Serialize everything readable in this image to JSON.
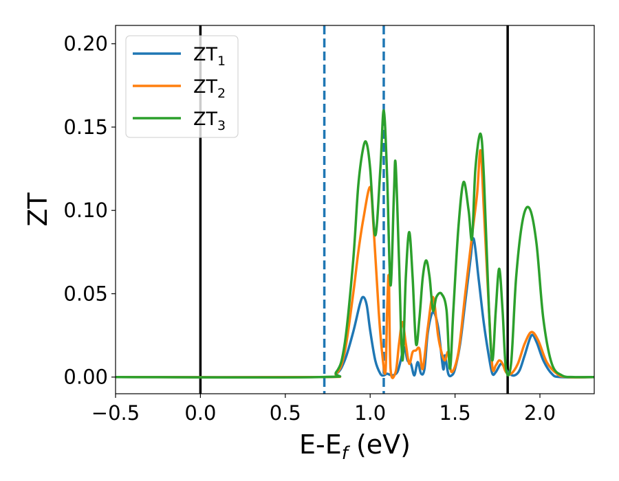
{
  "chart_data": {
    "type": "line",
    "xlabel": "E-E",
    "xlabel_sub": "f",
    "xlabel_unit": " (eV)",
    "ylabel": "ZT",
    "xlim": [
      -0.5,
      2.32
    ],
    "ylim": [
      -0.01,
      0.211
    ],
    "x_ticks": [
      -0.5,
      0.0,
      0.5,
      1.0,
      1.5,
      2.0
    ],
    "x_tick_labels": [
      "−0.5",
      "0.0",
      "0.5",
      "1.0",
      "1.5",
      "2.0"
    ],
    "y_ticks": [
      0.0,
      0.05,
      0.1,
      0.15,
      0.2
    ],
    "y_tick_labels": [
      "0.00",
      "0.05",
      "0.10",
      "0.15",
      "0.20"
    ],
    "grid": false,
    "legend_position": "top-left",
    "vlines": [
      {
        "x": 0.0,
        "style": "solid",
        "color": "#000000"
      },
      {
        "x": 1.81,
        "style": "solid",
        "color": "#000000"
      },
      {
        "x": 0.73,
        "style": "dashed",
        "color": "#1f77b4"
      },
      {
        "x": 1.08,
        "style": "dashed",
        "color": "#1f77b4"
      }
    ],
    "series": [
      {
        "name": "ZT",
        "sub": "1",
        "color": "#1f77b4",
        "x": [
          -0.5,
          0.7,
          0.8,
          0.85,
          0.9,
          0.94,
          0.96,
          0.98,
          1.0,
          1.03,
          1.06,
          1.08,
          1.1,
          1.13,
          1.16,
          1.18,
          1.2,
          1.22,
          1.24,
          1.26,
          1.28,
          1.3,
          1.32,
          1.34,
          1.37,
          1.4,
          1.43,
          1.44,
          1.46,
          1.48,
          1.5,
          1.53,
          1.56,
          1.59,
          1.61,
          1.64,
          1.67,
          1.7,
          1.72,
          1.74,
          1.77,
          1.79,
          1.82,
          1.85,
          1.88,
          1.91,
          1.95,
          1.98,
          2.02,
          2.07,
          2.12,
          2.32
        ],
        "y": [
          0.0,
          0.0,
          0.002,
          0.01,
          0.027,
          0.044,
          0.048,
          0.043,
          0.028,
          0.01,
          0.002,
          0.001,
          0.002,
          0.001,
          0.003,
          0.01,
          0.018,
          0.01,
          0.008,
          0.001,
          0.009,
          0.002,
          0.005,
          0.027,
          0.039,
          0.03,
          0.005,
          0.013,
          0.002,
          0.001,
          0.005,
          0.02,
          0.045,
          0.07,
          0.083,
          0.058,
          0.032,
          0.012,
          0.002,
          0.003,
          0.008,
          0.006,
          0.002,
          0.001,
          0.004,
          0.013,
          0.025,
          0.021,
          0.01,
          0.002,
          0.0,
          0.0
        ]
      },
      {
        "name": "ZT",
        "sub": "2",
        "color": "#ff7f0e",
        "x": [
          -0.5,
          0.7,
          0.8,
          0.85,
          0.9,
          0.93,
          0.96,
          1.0,
          1.02,
          1.05,
          1.07,
          1.09,
          1.1,
          1.11,
          1.12,
          1.15,
          1.17,
          1.19,
          1.21,
          1.23,
          1.25,
          1.27,
          1.29,
          1.31,
          1.34,
          1.37,
          1.4,
          1.42,
          1.44,
          1.46,
          1.48,
          1.52,
          1.56,
          1.6,
          1.63,
          1.65,
          1.67,
          1.7,
          1.72,
          1.74,
          1.76,
          1.78,
          1.8,
          1.83,
          1.87,
          1.91,
          1.95,
          1.99,
          2.04,
          2.1,
          2.16,
          2.32
        ],
        "y": [
          0.0,
          0.0,
          0.002,
          0.015,
          0.05,
          0.075,
          0.095,
          0.114,
          0.09,
          0.04,
          0.015,
          0.003,
          0.04,
          0.06,
          0.005,
          0.003,
          0.02,
          0.033,
          0.02,
          0.008,
          0.015,
          0.016,
          0.017,
          0.005,
          0.03,
          0.048,
          0.025,
          0.015,
          0.01,
          0.015,
          0.003,
          0.015,
          0.05,
          0.085,
          0.11,
          0.136,
          0.1,
          0.04,
          0.006,
          0.007,
          0.01,
          0.008,
          0.003,
          0.002,
          0.008,
          0.02,
          0.027,
          0.022,
          0.009,
          0.002,
          0.0,
          0.0
        ]
      },
      {
        "name": "ZT",
        "sub": "3",
        "color": "#2ca02c",
        "x": [
          -0.5,
          0.7,
          0.8,
          0.85,
          0.9,
          0.93,
          0.96,
          0.98,
          1.0,
          1.03,
          1.06,
          1.08,
          1.1,
          1.12,
          1.14,
          1.15,
          1.17,
          1.19,
          1.21,
          1.23,
          1.25,
          1.27,
          1.29,
          1.31,
          1.33,
          1.35,
          1.37,
          1.39,
          1.42,
          1.45,
          1.47,
          1.49,
          1.52,
          1.55,
          1.58,
          1.6,
          1.62,
          1.65,
          1.67,
          1.7,
          1.72,
          1.74,
          1.76,
          1.78,
          1.8,
          1.83,
          1.86,
          1.9,
          1.94,
          1.98,
          2.02,
          2.07,
          2.13,
          2.2,
          2.32
        ],
        "y": [
          0.0,
          0.0,
          0.003,
          0.02,
          0.07,
          0.115,
          0.138,
          0.14,
          0.125,
          0.085,
          0.125,
          0.16,
          0.12,
          0.055,
          0.11,
          0.128,
          0.07,
          0.01,
          0.06,
          0.087,
          0.06,
          0.02,
          0.035,
          0.06,
          0.07,
          0.06,
          0.04,
          0.048,
          0.05,
          0.04,
          0.005,
          0.04,
          0.09,
          0.117,
          0.1,
          0.083,
          0.125,
          0.146,
          0.12,
          0.04,
          0.01,
          0.04,
          0.065,
          0.04,
          0.005,
          0.008,
          0.06,
          0.095,
          0.101,
          0.08,
          0.035,
          0.008,
          0.001,
          0.0,
          0.0
        ]
      }
    ]
  }
}
